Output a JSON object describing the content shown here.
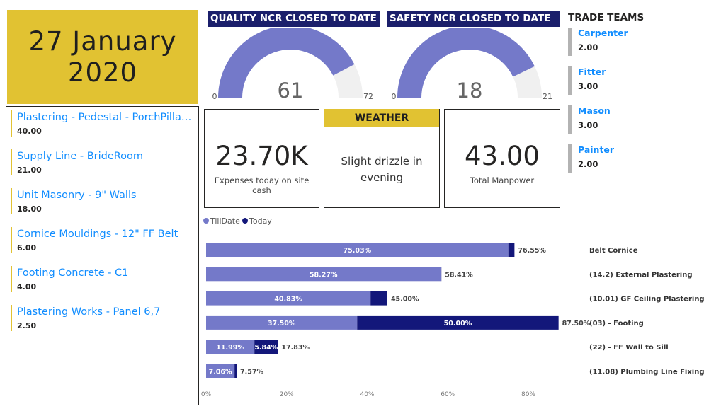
{
  "date": {
    "line1": "27 January",
    "line2": "2020"
  },
  "tasks": [
    {
      "name": "Plastering - Pedestal - PorchPillar ...",
      "value": "40.00"
    },
    {
      "name": "Supply Line - BrideRoom",
      "value": "21.00"
    },
    {
      "name": "Unit Masonry - 9\" Walls",
      "value": "18.00"
    },
    {
      "name": "Cornice Mouldings - 12\" FF Belt",
      "value": "6.00"
    },
    {
      "name": "Footing Concrete - C1",
      "value": "4.00"
    },
    {
      "name": "Plastering Works - Panel 6,7",
      "value": "2.50"
    }
  ],
  "gauges": {
    "quality": {
      "title": "QUALITY NCR CLOSED TO DATE",
      "value": 61,
      "min": 0,
      "max": 72,
      "value_label": "61",
      "min_label": "0",
      "max_label": "72"
    },
    "safety": {
      "title": "SAFETY NCR CLOSED TO DATE",
      "value": 18,
      "min": 0,
      "max": 21,
      "value_label": "18",
      "min_label": "0",
      "max_label": "21"
    }
  },
  "kpis": {
    "expenses": {
      "value": "23.70K",
      "label": "Expenses today on site cash"
    },
    "weather": {
      "title": "WEATHER",
      "line1": "Slight drizzle in",
      "line2": "evening"
    },
    "manpower": {
      "value": "43.00",
      "label": "Total Manpower"
    }
  },
  "trade_teams": {
    "title": "TRADE TEAMS",
    "items": [
      {
        "name": "Carpenter",
        "value": "2.00"
      },
      {
        "name": "Fitter",
        "value": "3.00"
      },
      {
        "name": "Mason",
        "value": "3.00"
      },
      {
        "name": "Painter",
        "value": "2.00"
      }
    ]
  },
  "colors": {
    "accent": "#e1c232",
    "navy": "#1b1f6b",
    "till_date": "#7479c9",
    "today": "#13177a",
    "gauge_bg": "#f0f0f0",
    "link": "#118dff"
  },
  "chart_data": {
    "type": "bar",
    "orientation": "horizontal",
    "stacked": true,
    "categories": [
      "Belt Cornice",
      "(14.2) External Plastering",
      "(10.01) GF Ceiling Plastering",
      "(03) - Footing",
      "(22) - FF Wall to Sill",
      "(11.08) Plumbing Line Fixing"
    ],
    "series": [
      {
        "name": "TillDate",
        "values": [
          75.03,
          58.27,
          40.83,
          37.5,
          11.99,
          7.06
        ],
        "labels": [
          "75.03%",
          "58.27%",
          "40.83%",
          "37.50%",
          "11.99%",
          "7.06%"
        ]
      },
      {
        "name": "Today",
        "values": [
          1.52,
          0.14,
          4.17,
          50.0,
          5.84,
          0.51
        ],
        "labels": [
          "",
          "",
          "",
          "50.00%",
          "5.84%",
          ""
        ]
      }
    ],
    "totals": [
      "76.55%",
      "58.41%",
      "45.00%",
      "87.50%",
      "17.83%",
      "7.57%"
    ],
    "xlim": [
      0,
      88
    ],
    "xticks": [
      0,
      20,
      40,
      60,
      80
    ],
    "xtick_labels": [
      "0%",
      "20%",
      "40%",
      "60%",
      "80%"
    ],
    "legend": "top-left"
  }
}
